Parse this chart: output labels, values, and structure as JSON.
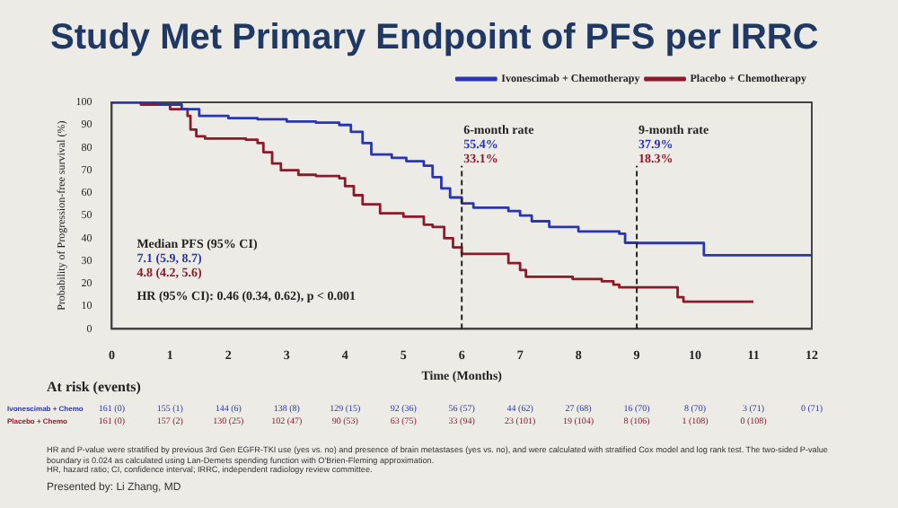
{
  "chart_data": {
    "type": "step",
    "title": "Study Met Primary Endpoint of PFS per IRRC",
    "xlabel": "Time (Months)",
    "ylabel": "Probability of Progression-free survival (%)",
    "xlim": [
      0,
      12
    ],
    "xticks": [
      0,
      1,
      2,
      3,
      4,
      5,
      6,
      7,
      8,
      9,
      10,
      11,
      12
    ],
    "ylim": [
      0,
      100
    ],
    "yticks": [
      0,
      10,
      20,
      30,
      40,
      50,
      60,
      70,
      80,
      90,
      100
    ],
    "grid": false,
    "legend": "top right",
    "line_style": "solid",
    "series": [
      {
        "name": "Ivonescimab + Chemotherapy",
        "color": "#2a35b0",
        "x": [
          0,
          0.8,
          1.2,
          1.5,
          2.0,
          2.5,
          3.0,
          3.5,
          3.9,
          4.1,
          4.3,
          4.45,
          4.8,
          5.05,
          5.35,
          5.5,
          5.65,
          5.8,
          6.0,
          6.2,
          6.8,
          7.0,
          7.2,
          7.5,
          8.0,
          8.7,
          8.8,
          9.0,
          10.15,
          12
        ],
        "values": [
          100,
          99,
          97,
          94,
          93,
          92.5,
          91.5,
          91,
          90,
          87,
          82,
          77,
          75.5,
          74,
          72,
          67,
          62,
          58,
          55.4,
          53.5,
          52,
          50,
          47.5,
          45,
          43,
          42,
          38,
          37.9,
          32.5,
          32.5
        ]
      },
      {
        "name": "Placebo + Chemotherapy",
        "color": "#8b1a2b",
        "x": [
          0,
          0.5,
          1.0,
          1.3,
          1.35,
          1.45,
          1.6,
          2.3,
          2.5,
          2.6,
          2.75,
          2.9,
          3.2,
          3.5,
          3.9,
          4.0,
          4.15,
          4.3,
          4.6,
          5.0,
          5.35,
          5.5,
          5.7,
          5.85,
          6.0,
          6.7,
          6.8,
          7.0,
          7.1,
          7.9,
          8.4,
          8.6,
          8.7,
          9.6,
          9.7,
          9.8,
          11
        ],
        "values": [
          100,
          99,
          97,
          94,
          88,
          85,
          84,
          83.5,
          82,
          78,
          73,
          70,
          68,
          67.5,
          66.5,
          63,
          59,
          55,
          51,
          49.5,
          46,
          45,
          40,
          36,
          33.1,
          33.1,
          29,
          26,
          23,
          22,
          21,
          19.5,
          18.3,
          18.3,
          14,
          12,
          12
        ]
      }
    ],
    "ref_lines": [
      {
        "axis": "x",
        "value": 6,
        "label": "6-month rate",
        "line_style": "dashed",
        "color": "#222222"
      },
      {
        "axis": "x",
        "value": 9,
        "label": "9-month rate",
        "line_style": "dashed",
        "color": "#222222"
      }
    ],
    "annotations": [
      "Median PFS (95% CI)",
      "7.1 (5.9, 8.7)",
      "4.8 (4.2, 5.6)",
      "HR (95% CI): 0.46 (0.34, 0.62), p < 0.001",
      "55.4%",
      "33.1%",
      "37.9%",
      "18.3%",
      "At risk (events)",
      "Ivonescimab + Chemo",
      "161 (0)",
      "155 (1)",
      "144 (6)",
      "138 (8)",
      "129 (15)",
      "92 (36)",
      "56 (57)",
      "44 (62)",
      "27 (68)",
      "16 (70)",
      "8 (70)",
      "3 (71)",
      "0 (71)",
      "Placebo + Chemo",
      "161 (0)",
      "157 (2)",
      "130 (25)",
      "102 (47)",
      "90 (53)",
      "63 (75)",
      "33 (94)",
      "23 (101)",
      "19 (104)",
      "8 (106)",
      "1 (108)",
      "0 (108)",
      "HR and P-value were stratified by previous 3rd Gen EGFR-TKI use (yes vs. no) and presence of brain metastases (yes vs. no), and were calculated with stratified Cox model and log rank test. The two-sided P-value boundary is 0.024 as calculated using Lan-Demets spending function with O'Brien-Fleming approximation.",
      "HR, hazard ratio; CI, confidence interval; IRRC, independent radiology review committee.",
      "Presented by: Li Zhang, MD"
    ]
  }
}
